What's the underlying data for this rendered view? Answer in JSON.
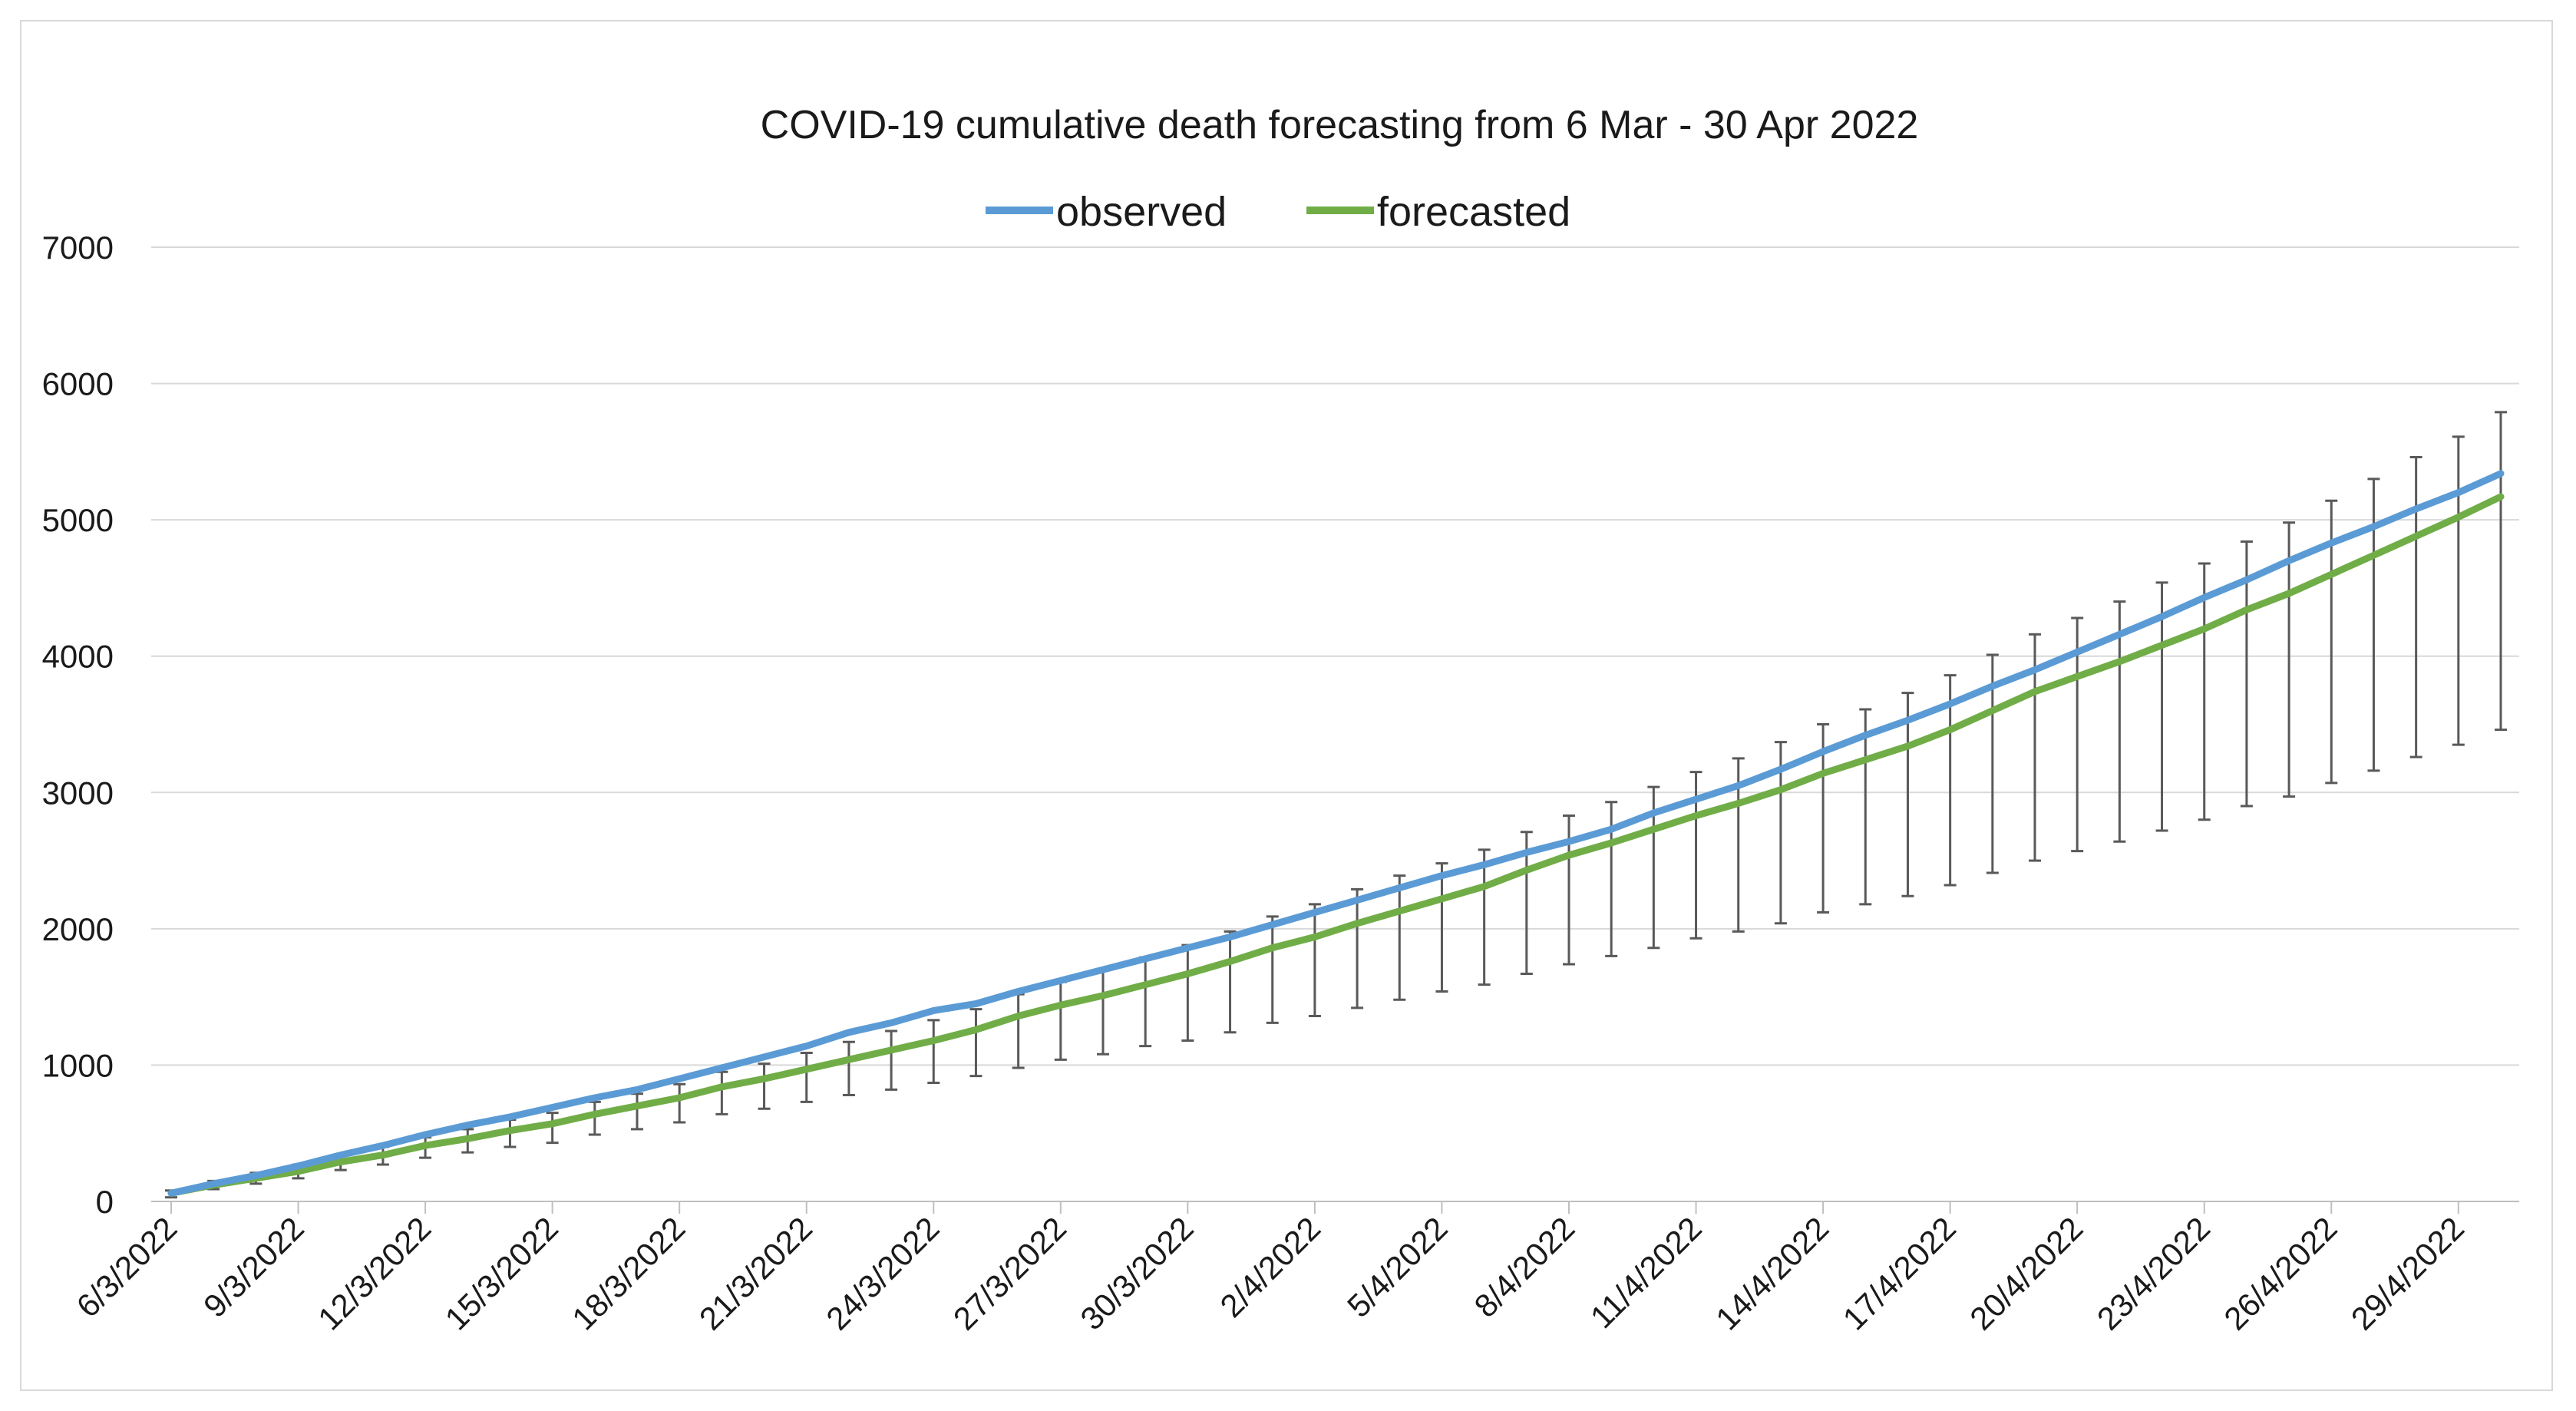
{
  "chart_data": {
    "type": "line",
    "title": "COVID-19 cumulative death forecasting from 6 Mar - 30 Apr 2022",
    "xlabel": "",
    "ylabel": "",
    "ylim": [
      0,
      7000
    ],
    "yticks": [
      0,
      1000,
      2000,
      3000,
      4000,
      5000,
      6000,
      7000
    ],
    "grid": "horizontal",
    "legend_position": "top-center",
    "x_tick_labels": [
      "6/3/2022",
      "9/3/2022",
      "12/3/2022",
      "15/3/2022",
      "18/3/2022",
      "21/3/2022",
      "24/3/2022",
      "27/3/2022",
      "30/3/2022",
      "2/4/2022",
      "5/4/2022",
      "8/4/2022",
      "11/4/2022",
      "14/4/2022",
      "17/4/2022",
      "20/4/2022",
      "23/4/2022",
      "26/4/2022",
      "29/4/2022"
    ],
    "x_tick_interval_days": 3,
    "series": [
      {
        "name": "observed",
        "color": "#5b9bd5",
        "values": [
          60,
          130,
          190,
          260,
          340,
          410,
          490,
          560,
          620,
          690,
          760,
          820,
          900,
          980,
          1060,
          1140,
          1240,
          1310,
          1400,
          1450,
          1540,
          1620,
          1700,
          1780,
          1860,
          1940,
          2030,
          2120,
          2210,
          2300,
          2390,
          2470,
          2560,
          2640,
          2730,
          2850,
          2950,
          3050,
          3170,
          3300,
          3420,
          3530,
          3650,
          3780,
          3900,
          4030,
          4160,
          4290,
          4430,
          4560,
          4700,
          4830,
          4950,
          5080,
          5200,
          5340
        ]
      },
      {
        "name": "forecasted",
        "color": "#70ad47",
        "values": [
          60,
          120,
          170,
          220,
          290,
          340,
          410,
          460,
          520,
          570,
          640,
          700,
          760,
          840,
          900,
          970,
          1040,
          1110,
          1180,
          1260,
          1360,
          1440,
          1510,
          1590,
          1670,
          1760,
          1860,
          1940,
          2040,
          2130,
          2220,
          2310,
          2430,
          2540,
          2630,
          2730,
          2830,
          2920,
          3020,
          3140,
          3240,
          3340,
          3460,
          3600,
          3740,
          3850,
          3960,
          4080,
          4200,
          4340,
          4460,
          4600,
          4740,
          4880,
          5020,
          5170
        ]
      }
    ],
    "error_bars": {
      "series": "forecasted",
      "color": "#595959",
      "lower": [
        30,
        90,
        130,
        170,
        230,
        270,
        320,
        360,
        400,
        430,
        490,
        530,
        580,
        640,
        680,
        730,
        780,
        820,
        870,
        920,
        980,
        1040,
        1080,
        1140,
        1180,
        1240,
        1310,
        1360,
        1420,
        1480,
        1540,
        1590,
        1670,
        1740,
        1800,
        1860,
        1930,
        1980,
        2040,
        2120,
        2180,
        2240,
        2320,
        2410,
        2500,
        2570,
        2640,
        2720,
        2800,
        2900,
        2970,
        3070,
        3160,
        3260,
        3350,
        3460
      ],
      "upper": [
        80,
        150,
        210,
        270,
        340,
        400,
        470,
        530,
        600,
        650,
        730,
        790,
        860,
        950,
        1010,
        1090,
        1170,
        1250,
        1330,
        1410,
        1520,
        1610,
        1700,
        1790,
        1880,
        1980,
        2090,
        2180,
        2290,
        2390,
        2480,
        2580,
        2710,
        2830,
        2930,
        3040,
        3150,
        3250,
        3370,
        3500,
        3610,
        3730,
        3860,
        4010,
        4160,
        4280,
        4400,
        4540,
        4680,
        4840,
        4980,
        5140,
        5300,
        5460,
        5610,
        5790
      ]
    }
  }
}
